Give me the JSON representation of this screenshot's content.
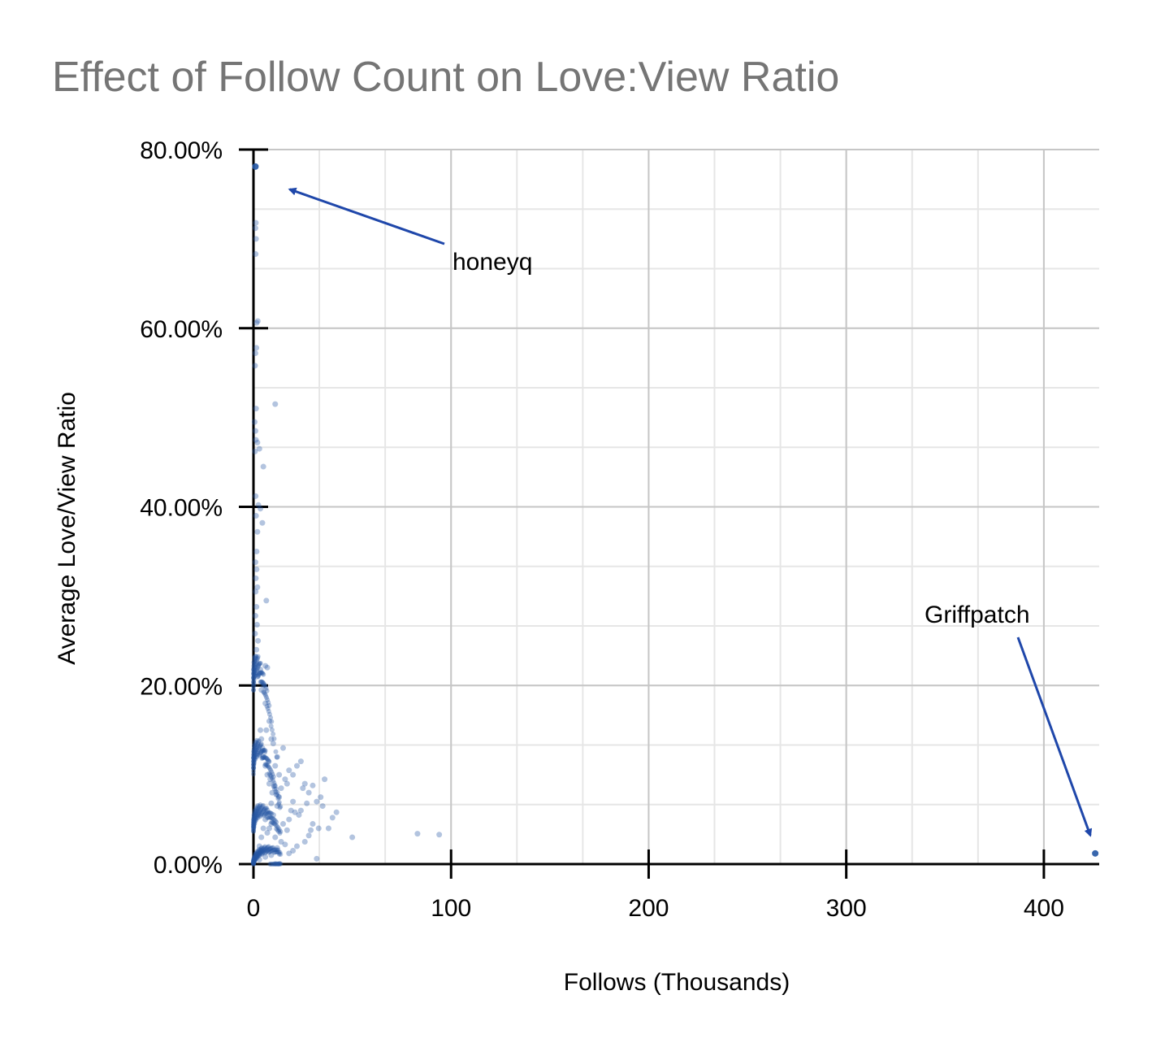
{
  "chart_data": {
    "type": "scatter",
    "title": "Effect of Follow Count on Love:View Ratio",
    "xlabel": "Follows (Thousands)",
    "ylabel": "Average Love/View Ratio",
    "xlim": [
      0,
      428
    ],
    "ylim": [
      0,
      0.8
    ],
    "x_ticks": [
      0,
      100,
      200,
      300,
      400
    ],
    "x_tick_labels": [
      "0",
      "100",
      "200",
      "300",
      "400"
    ],
    "y_ticks": [
      0,
      0.2,
      0.4,
      0.6,
      0.8
    ],
    "y_tick_labels": [
      "0.00%",
      "20.00%",
      "40.00%",
      "60.00%",
      "80.00%"
    ],
    "grid": true,
    "legend": "none",
    "marker_color": "#2456a4",
    "annotation_color": "#1f47aa",
    "annotations": [
      {
        "text": "honeyq",
        "x": 1,
        "y": 0.781
      },
      {
        "text": "Griffpatch",
        "x": 426,
        "y": 0.012
      }
    ],
    "points": [
      [
        1,
        0.781
      ],
      [
        426,
        0.012
      ],
      [
        1.2,
        0.718
      ],
      [
        1.0,
        0.712
      ],
      [
        1.3,
        0.7
      ],
      [
        1.1,
        0.683
      ],
      [
        1.6,
        0.606
      ],
      [
        2.2,
        0.608
      ],
      [
        1.5,
        0.578
      ],
      [
        1.0,
        0.572
      ],
      [
        0.8,
        0.558
      ],
      [
        11,
        0.515
      ],
      [
        1.3,
        0.51
      ],
      [
        0.6,
        0.495
      ],
      [
        1.0,
        0.485
      ],
      [
        1.2,
        0.475
      ],
      [
        2.0,
        0.472
      ],
      [
        3.0,
        0.465
      ],
      [
        0.8,
        0.462
      ],
      [
        5.0,
        0.445
      ],
      [
        1.1,
        0.412
      ],
      [
        2.5,
        0.402
      ],
      [
        3.5,
        0.398
      ],
      [
        1.3,
        0.39
      ],
      [
        4.5,
        0.382
      ],
      [
        2.0,
        0.372
      ],
      [
        1.6,
        0.35
      ],
      [
        1.0,
        0.338
      ],
      [
        1.6,
        0.33
      ],
      [
        1.2,
        0.32
      ],
      [
        2.0,
        0.31
      ],
      [
        1.1,
        0.305
      ],
      [
        6.5,
        0.295
      ],
      [
        1.5,
        0.288
      ],
      [
        1.0,
        0.278
      ],
      [
        1.8,
        0.268
      ],
      [
        0.8,
        0.258
      ],
      [
        2.3,
        0.25
      ],
      [
        1.5,
        0.24
      ],
      [
        1.0,
        0.232
      ],
      [
        6.0,
        0.222
      ],
      [
        3.5,
        0.218
      ],
      [
        7.0,
        0.22
      ],
      [
        2.0,
        0.21
      ],
      [
        5.0,
        0.2
      ],
      [
        4.0,
        0.195
      ],
      [
        6.0,
        0.18
      ],
      [
        8.0,
        0.16
      ],
      [
        6.5,
        0.15
      ],
      [
        9.0,
        0.14
      ],
      [
        10.0,
        0.135
      ],
      [
        12.0,
        0.12
      ],
      [
        15.0,
        0.13
      ],
      [
        11.0,
        0.11
      ],
      [
        13.0,
        0.1
      ],
      [
        16.0,
        0.095
      ],
      [
        14.0,
        0.085
      ],
      [
        17.0,
        0.09
      ],
      [
        18.0,
        0.105
      ],
      [
        20.0,
        0.1
      ],
      [
        22.0,
        0.11
      ],
      [
        24.0,
        0.115
      ],
      [
        26.0,
        0.09
      ],
      [
        25.0,
        0.085
      ],
      [
        28.0,
        0.08
      ],
      [
        30.0,
        0.088
      ],
      [
        32.0,
        0.07
      ],
      [
        34.0,
        0.075
      ],
      [
        36.0,
        0.095
      ],
      [
        27.0,
        0.068
      ],
      [
        20.0,
        0.07
      ],
      [
        19.0,
        0.06
      ],
      [
        21.0,
        0.058
      ],
      [
        23.0,
        0.055
      ],
      [
        18.0,
        0.05
      ],
      [
        15.0,
        0.045
      ],
      [
        17.0,
        0.038
      ],
      [
        24.0,
        0.06
      ],
      [
        35.0,
        0.065
      ],
      [
        42.0,
        0.058
      ],
      [
        40.0,
        0.052
      ],
      [
        30.0,
        0.045
      ],
      [
        33.0,
        0.04
      ],
      [
        29.0,
        0.038
      ],
      [
        28.0,
        0.032
      ],
      [
        38.0,
        0.04
      ],
      [
        50.0,
        0.03
      ],
      [
        83.0,
        0.034
      ],
      [
        94.0,
        0.033
      ],
      [
        13.0,
        0.075
      ],
      [
        12.0,
        0.065
      ],
      [
        10.0,
        0.055
      ],
      [
        9.0,
        0.045
      ],
      [
        8.0,
        0.04
      ],
      [
        7.0,
        0.035
      ],
      [
        11.0,
        0.03
      ],
      [
        14.0,
        0.025
      ],
      [
        16.0,
        0.022
      ],
      [
        12.0,
        0.018
      ],
      [
        20.0,
        0.015
      ],
      [
        32.0,
        0.006
      ],
      [
        9.0,
        0.01
      ],
      [
        6.0,
        0.008
      ],
      [
        18.0,
        0.012
      ],
      [
        22.0,
        0.02
      ],
      [
        26.0,
        0.025
      ],
      [
        5.0,
        0.12
      ],
      [
        4.5,
        0.13
      ],
      [
        6.0,
        0.11
      ],
      [
        7.0,
        0.1
      ],
      [
        8.0,
        0.09
      ],
      [
        9.5,
        0.08
      ],
      [
        3.5,
        0.15
      ],
      [
        4.0,
        0.14
      ],
      [
        5.5,
        0.125
      ],
      [
        7.5,
        0.115
      ],
      [
        8.5,
        0.095
      ],
      [
        10.5,
        0.088
      ],
      [
        11.5,
        0.078
      ],
      [
        9.0,
        0.068
      ],
      [
        7.0,
        0.06
      ],
      [
        6.0,
        0.05
      ],
      [
        5.0,
        0.04
      ],
      [
        4.0,
        0.03
      ],
      [
        3.0,
        0.02
      ],
      [
        2.0,
        0.01
      ],
      [
        3.0,
        0.005
      ],
      [
        4.0,
        0.015
      ]
    ]
  }
}
